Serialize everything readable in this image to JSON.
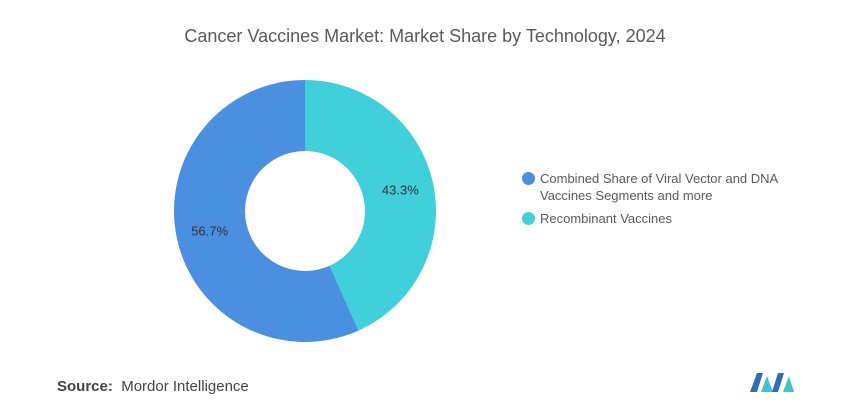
{
  "title": "Cancer Vaccines Market: Market Share by Technology, 2024",
  "source": {
    "label": "Source:",
    "value": "Mordor Intelligence"
  },
  "chart_data": {
    "type": "pie",
    "variant": "donut",
    "title": "Cancer Vaccines Market: Market Share by Technology, 2024",
    "categories": [
      "Recombinant Vaccines",
      "Combined Share of Viral Vector and DNA Vaccines Segments and more"
    ],
    "values": [
      43.3,
      56.7
    ],
    "labels": [
      "43.3%",
      "56.7%"
    ],
    "colors": [
      "#40d0db",
      "#4a8fe0"
    ],
    "legend_order": [
      1,
      0
    ],
    "legend_position": "right"
  },
  "legend": [
    {
      "label_line1": "Combined Share of Viral Vector and DNA",
      "label_line2": "Vaccines Segments and more",
      "color": "#4a8fe0"
    },
    {
      "label_line1": "Recombinant Vaccines",
      "label_line2": "",
      "color": "#40d0db"
    }
  ]
}
